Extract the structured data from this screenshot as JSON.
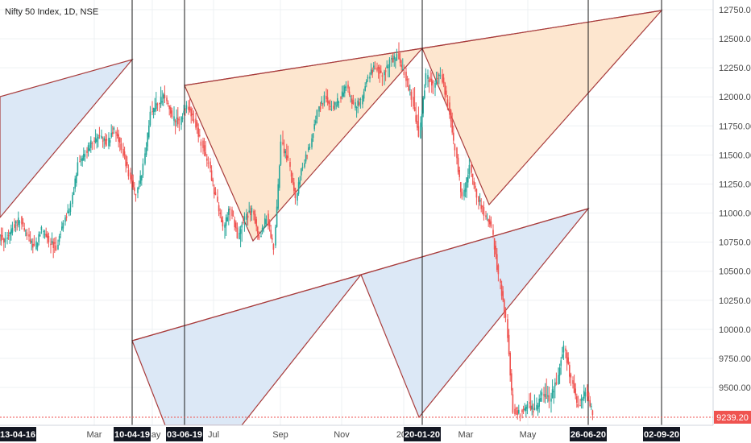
{
  "header": {
    "title": "Nifty 50 Index, 1D, NSE"
  },
  "chart_data": {
    "type": "candlestick",
    "title": "Nifty 50 Index, 1D, NSE",
    "ylim": [
      9239.2,
      12800
    ],
    "y_ticks": [
      9500,
      9750,
      10000,
      10250,
      10500,
      10750,
      11000,
      11250,
      11500,
      11750,
      12000,
      12250,
      12500,
      12750
    ],
    "y_tick_labels": [
      "9500.00",
      "9750.00",
      "10000.00",
      "10250.00",
      "10500.00",
      "10750.00",
      "11000.00",
      "11250.00",
      "11500.00",
      "11750.00",
      "12000.00",
      "12250.00",
      "12500.00",
      "12750.00"
    ],
    "x_month_labels": [
      "Mar",
      "May",
      "Jul",
      "Sep",
      "Nov",
      "202",
      "Mar",
      "May"
    ],
    "highlighted_dates": [
      "13-04-16",
      "10-04-19",
      "03-06-19",
      "20-01-20",
      "26-06-20",
      "02-09-20"
    ],
    "vertical_marker_dates": [
      "10-04-19",
      "03-06-19",
      "20-01-20",
      "26-06-20",
      "02-09-20"
    ],
    "last_price_label": "9239.20",
    "colors": {
      "up": "#26a69a",
      "down": "#ef5350",
      "pattern_line": "#a83c3c",
      "fill_blue": "#dce8f6",
      "fill_orange": "#fde6cf",
      "grid": "#eef0f3",
      "badge": "#131722",
      "price_badge": "#ef5350"
    },
    "candles_ohlc": [
      [
        "2019-01-01",
        10800,
        10860,
        10700,
        10760
      ],
      [
        "2019-01-08",
        10760,
        10920,
        10690,
        10880
      ],
      [
        "2019-01-15",
        10880,
        10990,
        10820,
        10950
      ],
      [
        "2019-01-22",
        10950,
        10980,
        10780,
        10810
      ],
      [
        "2019-01-29",
        10810,
        10870,
        10650,
        10700
      ],
      [
        "2019-02-05",
        10700,
        10880,
        10680,
        10860
      ],
      [
        "2019-02-12",
        10860,
        10900,
        10720,
        10760
      ],
      [
        "2019-02-19",
        10760,
        10820,
        10620,
        10700
      ],
      [
        "2019-02-26",
        10700,
        10950,
        10680,
        10920
      ],
      [
        "2019-03-05",
        10920,
        11100,
        10900,
        11060
      ],
      [
        "2019-03-12",
        11060,
        11450,
        11040,
        11420
      ],
      [
        "2019-03-19",
        11420,
        11560,
        11380,
        11520
      ],
      [
        "2019-03-26",
        11520,
        11660,
        11480,
        11620
      ],
      [
        "2019-04-02",
        11620,
        11720,
        11560,
        11660
      ],
      [
        "2019-04-09",
        11660,
        11700,
        11540,
        11600
      ],
      [
        "2019-04-16",
        11600,
        11780,
        11580,
        11720
      ],
      [
        "2019-04-23",
        11720,
        11760,
        11500,
        11560
      ],
      [
        "2019-04-30",
        11560,
        11600,
        11300,
        11340
      ],
      [
        "2019-05-07",
        11340,
        11380,
        11110,
        11150
      ],
      [
        "2019-05-14",
        11150,
        11440,
        11120,
        11400
      ],
      [
        "2019-05-21",
        11400,
        11900,
        11380,
        11860
      ],
      [
        "2019-05-28",
        11860,
        12040,
        11820,
        11950
      ],
      [
        "2019-06-04",
        11950,
        12100,
        11900,
        12010
      ],
      [
        "2019-06-11",
        12010,
        12020,
        11780,
        11820
      ],
      [
        "2019-06-18",
        11820,
        11900,
        11690,
        11780
      ],
      [
        "2019-06-25",
        11780,
        11960,
        11750,
        11920
      ],
      [
        "2019-07-02",
        11920,
        11980,
        11750,
        11800
      ],
      [
        "2019-07-09",
        11800,
        11840,
        11550,
        11600
      ],
      [
        "2019-07-16",
        11600,
        11680,
        11380,
        11420
      ],
      [
        "2019-07-23",
        11420,
        11450,
        11100,
        11130
      ],
      [
        "2019-07-30",
        11130,
        11180,
        10850,
        10880
      ],
      [
        "2019-08-06",
        10880,
        11080,
        10790,
        11050
      ],
      [
        "2019-08-13",
        11050,
        11080,
        10780,
        10800
      ],
      [
        "2019-08-20",
        10800,
        11000,
        10680,
        10960
      ],
      [
        "2019-08-27",
        10960,
        11080,
        10900,
        11020
      ],
      [
        "2019-09-03",
        11020,
        11040,
        10740,
        10780
      ],
      [
        "2019-09-10",
        10780,
        11000,
        10760,
        10970
      ],
      [
        "2019-09-17",
        10970,
        11000,
        10670,
        10700
      ],
      [
        "2019-09-24",
        10700,
        11650,
        10690,
        11600
      ],
      [
        "2019-10-01",
        11600,
        11690,
        11420,
        11450
      ],
      [
        "2019-10-08",
        11450,
        11480,
        11090,
        11130
      ],
      [
        "2019-10-15",
        11130,
        11450,
        11100,
        11420
      ],
      [
        "2019-10-22",
        11420,
        11600,
        11400,
        11580
      ],
      [
        "2019-10-29",
        11580,
        11900,
        11560,
        11870
      ],
      [
        "2019-11-05",
        11870,
        12020,
        11840,
        11990
      ],
      [
        "2019-11-12",
        11990,
        12050,
        11860,
        11900
      ],
      [
        "2019-11-19",
        11900,
        12010,
        11870,
        11980
      ],
      [
        "2019-11-26",
        11980,
        12150,
        11960,
        12100
      ],
      [
        "2019-12-03",
        12100,
        12130,
        11880,
        11920
      ],
      [
        "2019-12-10",
        11920,
        11980,
        11850,
        11960
      ],
      [
        "2019-12-17",
        11960,
        12200,
        11940,
        12180
      ],
      [
        "2019-12-24",
        12180,
        12300,
        12150,
        12260
      ],
      [
        "2019-12-31",
        12260,
        12290,
        12100,
        12180
      ],
      [
        "2020-01-07",
        12180,
        12330,
        12100,
        12300
      ],
      [
        "2020-01-14",
        12300,
        12380,
        12240,
        12350
      ],
      [
        "2020-01-21",
        12350,
        12430,
        12180,
        12200
      ],
      [
        "2020-01-28",
        12200,
        12250,
        11950,
        12000
      ],
      [
        "2020-02-04",
        12000,
        12160,
        11650,
        11660
      ],
      [
        "2020-02-11",
        11660,
        12220,
        11640,
        12180
      ],
      [
        "2020-02-18",
        12180,
        12240,
        12020,
        12100
      ],
      [
        "2020-02-25",
        12100,
        12260,
        12040,
        12200
      ],
      [
        "2020-03-03",
        12200,
        12230,
        11900,
        11940
      ],
      [
        "2020-03-10",
        11940,
        12000,
        11500,
        11540
      ],
      [
        "2020-03-17",
        11540,
        11560,
        11080,
        11120
      ],
      [
        "2020-03-24",
        11120,
        11450,
        11050,
        11400
      ],
      [
        "2020-03-31",
        11400,
        11420,
        11100,
        11150
      ],
      [
        "2020-04-07",
        11150,
        11200,
        10950,
        11000
      ],
      [
        "2020-04-14",
        11000,
        11030,
        10850,
        10880
      ],
      [
        "2020-04-21",
        10880,
        10920,
        10400,
        10450
      ],
      [
        "2020-04-28",
        10450,
        10480,
        10050,
        10090
      ],
      [
        "2020-05-05",
        10090,
        10130,
        9260,
        9300
      ],
      [
        "2020-05-12",
        9300,
        9330,
        9240,
        9280
      ],
      [
        "2020-05-19",
        9280,
        9380,
        9240,
        9350
      ],
      [
        "2020-05-26",
        9350,
        9450,
        9260,
        9300
      ],
      [
        "2020-06-02",
        9300,
        9500,
        9250,
        9450
      ],
      [
        "2020-06-09",
        9450,
        9600,
        9350,
        9400
      ],
      [
        "2020-06-16",
        9400,
        9620,
        9300,
        9550
      ],
      [
        "2020-06-23",
        9550,
        9900,
        9480,
        9850
      ],
      [
        "2020-06-30",
        9850,
        9880,
        9500,
        9560
      ],
      [
        "2020-07-07",
        9560,
        9620,
        9300,
        9330
      ],
      [
        "2020-07-14",
        9330,
        9520,
        9260,
        9480
      ],
      [
        "2020-07-21",
        9480,
        9500,
        9250,
        9280
      ]
    ],
    "patterns": [
      {
        "name": "pattern-1-upper",
        "fill": "blue",
        "points": [
          [
            "2019-01-01",
            12000
          ],
          [
            "2019-04-10",
            12330
          ],
          [
            "2019-01-01",
            11000
          ]
        ]
      },
      {
        "name": "pattern-2",
        "fill": "orange",
        "points": [
          [
            "2019-06-03",
            12100
          ],
          [
            "2019-08-05",
            10760
          ],
          [
            "2020-01-20",
            12430
          ],
          [
            "2020-09-02",
            12740
          ],
          [
            "2020-03-31",
            11080
          ]
        ]
      },
      {
        "name": "pattern-3",
        "fill": "blue",
        "points": [
          [
            "2019-04-10",
            9900
          ],
          [
            "2019-07-10",
            9200
          ],
          [
            "2019-11-20",
            10480
          ],
          [
            "2020-01-20",
            9280
          ],
          [
            "2020-06-26",
            11040
          ]
        ]
      }
    ]
  }
}
